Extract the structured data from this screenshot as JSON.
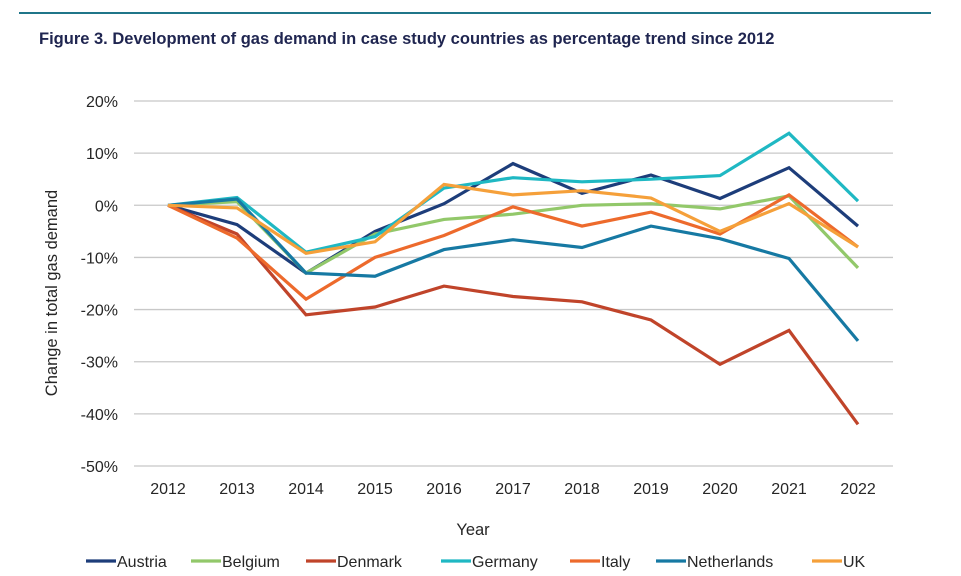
{
  "figure": {
    "title": "Figure 3. Development of gas demand in case study countries as percentage trend since 2012",
    "rule_color": "#1f7589"
  },
  "chart_data": {
    "type": "line",
    "title": "Figure 3. Development of gas demand in case study countries as percentage trend since 2012",
    "xlabel": "Year",
    "ylabel": "Change in total gas demand",
    "x": [
      "2012",
      "2013",
      "2014",
      "2015",
      "2016",
      "2017",
      "2018",
      "2019",
      "2020",
      "2021",
      "2022"
    ],
    "ylim": [
      -50,
      20
    ],
    "yticks": [
      20,
      10,
      0,
      -10,
      -20,
      -30,
      -40,
      -50
    ],
    "ytick_labels": [
      "20%",
      "10%",
      "0%",
      "-10%",
      "-20%",
      "-30%",
      "-40%",
      "-50%"
    ],
    "grid": true,
    "legend_position": "bottom",
    "series": [
      {
        "name": "Austria",
        "color": "#1d3d7a",
        "values": [
          0,
          -3.7,
          -13,
          -5,
          0.3,
          8,
          2.3,
          5.8,
          1.3,
          7.2,
          -4
        ]
      },
      {
        "name": "Belgium",
        "color": "#92c86a",
        "values": [
          0,
          0.7,
          -13,
          -5.5,
          -2.7,
          -1.7,
          0,
          0.3,
          -0.7,
          1.8,
          -12
        ]
      },
      {
        "name": "Denmark",
        "color": "#c0442a",
        "values": [
          0,
          -5.5,
          -21,
          -19.5,
          -15.5,
          -17.5,
          -18.5,
          -22,
          -30.5,
          -24,
          -42
        ]
      },
      {
        "name": "Germany",
        "color": "#1fb8c3",
        "values": [
          0,
          1.5,
          -9,
          -6,
          3.3,
          5.3,
          4.5,
          5,
          5.7,
          13.8,
          0.8
        ]
      },
      {
        "name": "Italy",
        "color": "#ed6a2c",
        "values": [
          0,
          -6.3,
          -18,
          -10,
          -5.8,
          -0.3,
          -4,
          -1.3,
          -5.5,
          2,
          -8
        ]
      },
      {
        "name": "Netherlands",
        "color": "#1679a3",
        "values": [
          0,
          1.2,
          -13,
          -13.6,
          -8.5,
          -6.6,
          -8.1,
          -4,
          -6.4,
          -10.2,
          -26
        ]
      },
      {
        "name": "UK",
        "color": "#f5a03a",
        "values": [
          0,
          -0.5,
          -9.2,
          -7,
          4,
          2,
          2.8,
          1.4,
          -5,
          0.3,
          -8
        ]
      }
    ]
  }
}
